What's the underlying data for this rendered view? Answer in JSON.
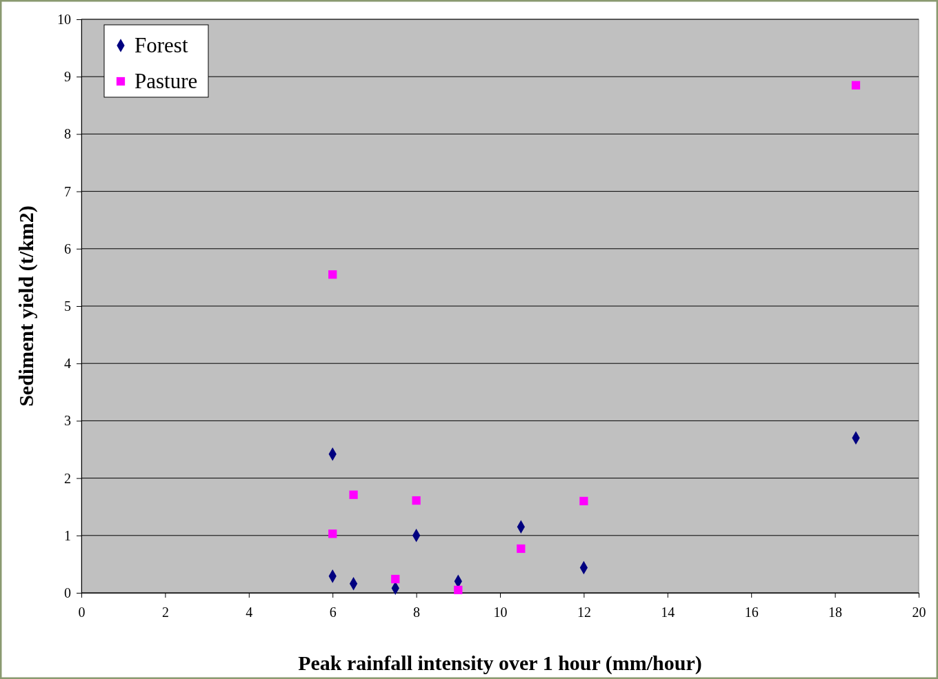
{
  "chart_data": {
    "type": "scatter",
    "xlabel": "Peak rainfall intensity over 1 hour (mm/hour)",
    "ylabel": "Sediment yield (t/km2)",
    "xlim": [
      0,
      20
    ],
    "xticks": [
      0,
      2,
      4,
      6,
      8,
      10,
      12,
      14,
      16,
      18,
      20
    ],
    "ylim": [
      0,
      10
    ],
    "yticks": [
      0,
      1,
      2,
      3,
      4,
      5,
      6,
      7,
      8,
      9,
      10
    ],
    "grid": "y",
    "legend": "top left",
    "series": [
      {
        "name": "Forest",
        "color": "#000080",
        "marker": "diamond",
        "x": [
          6,
          6,
          6.5,
          7.5,
          8,
          9,
          10.5,
          12,
          18.5
        ],
        "values": [
          2.42,
          0.29,
          0.16,
          0.08,
          1.0,
          0.2,
          1.15,
          0.44,
          2.7
        ]
      },
      {
        "name": "Pasture",
        "color": "#ff00ff",
        "marker": "square",
        "x": [
          6,
          6,
          6.5,
          7.5,
          8,
          9,
          10.5,
          12,
          18.5
        ],
        "values": [
          5.55,
          1.03,
          1.71,
          0.24,
          1.61,
          0.05,
          0.77,
          1.6,
          8.85
        ]
      }
    ]
  }
}
